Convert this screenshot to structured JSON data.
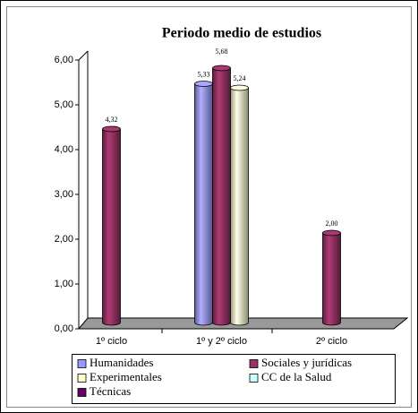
{
  "chart_data": {
    "type": "bar",
    "title": "Periodo medio de estudios",
    "categories": [
      "1º ciclo",
      "1º y 2º ciclo",
      "2º ciclo"
    ],
    "series": [
      {
        "name": "Humanidades",
        "color": "#9999ff",
        "values": [
          null,
          5.33,
          null
        ],
        "value_labels": [
          null,
          "5,33",
          null
        ]
      },
      {
        "name": "Sociales y jurídicas",
        "color": "#993366",
        "values": [
          4.32,
          5.68,
          2.0
        ],
        "value_labels": [
          "4,32",
          "5,68",
          "2,00"
        ]
      },
      {
        "name": "Experimentales",
        "color": "#ffffcc",
        "values": [
          null,
          5.24,
          null
        ],
        "value_labels": [
          null,
          "5,24",
          null
        ]
      },
      {
        "name": "CC de la Salud",
        "color": "#ccffff",
        "values": [
          null,
          null,
          null
        ],
        "value_labels": [
          null,
          null,
          null
        ]
      },
      {
        "name": "Técnicas",
        "color": "#660066",
        "values": [
          null,
          null,
          null
        ],
        "value_labels": [
          null,
          null,
          null
        ]
      }
    ],
    "ylim": [
      0,
      6
    ],
    "yticks": [
      {
        "value": 0,
        "label": "0,00"
      },
      {
        "value": 1,
        "label": "1,00"
      },
      {
        "value": 2,
        "label": "2,00"
      },
      {
        "value": 3,
        "label": "3,00"
      },
      {
        "value": 4,
        "label": "4,00"
      },
      {
        "value": 5,
        "label": "5,00"
      },
      {
        "value": 6,
        "label": "6,00"
      }
    ],
    "legend": "bottom"
  }
}
